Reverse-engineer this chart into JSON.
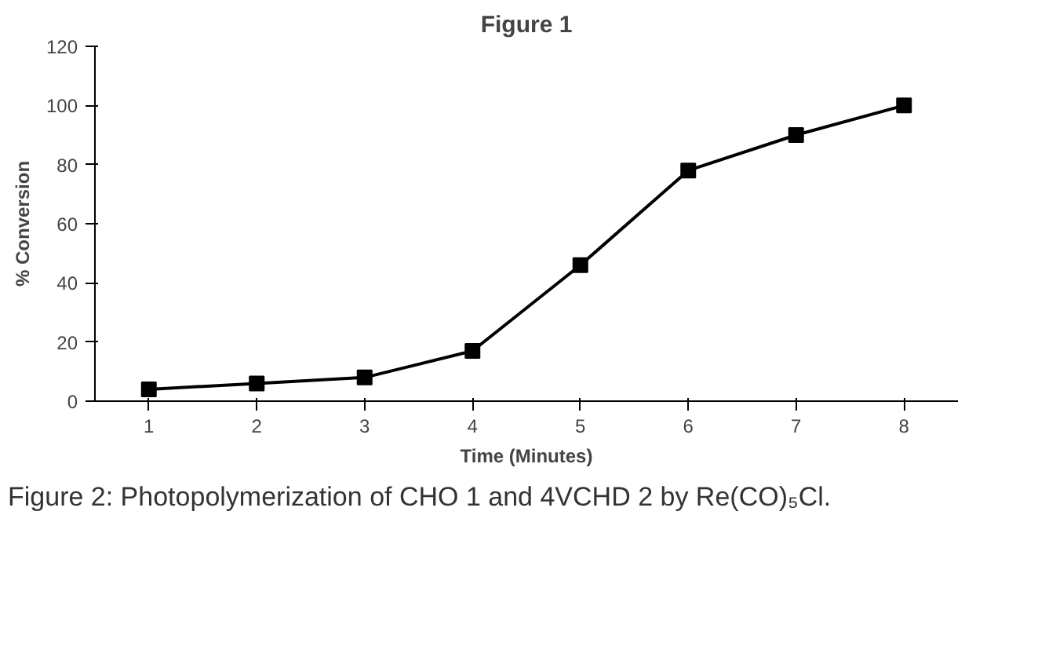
{
  "chart_data": {
    "type": "line",
    "title": "Figure 1",
    "xlabel": "Time (Minutes)",
    "ylabel": "% Conversion",
    "categories": [
      "1",
      "2",
      "3",
      "4",
      "5",
      "6",
      "7",
      "8"
    ],
    "series": [
      {
        "color": "#000000",
        "values": [
          4,
          6,
          8,
          17,
          46,
          78,
          90,
          100
        ]
      }
    ],
    "ylim": [
      0,
      120
    ],
    "yticks": [
      0,
      20,
      40,
      60,
      80,
      100,
      120
    ],
    "grid": false,
    "marker": "square",
    "line_style": "solid",
    "annotations": [
      "Figure 2: Photopolymerization of CHO 1 and 4VCHD 2 by Re(CO)₅Cl."
    ]
  }
}
